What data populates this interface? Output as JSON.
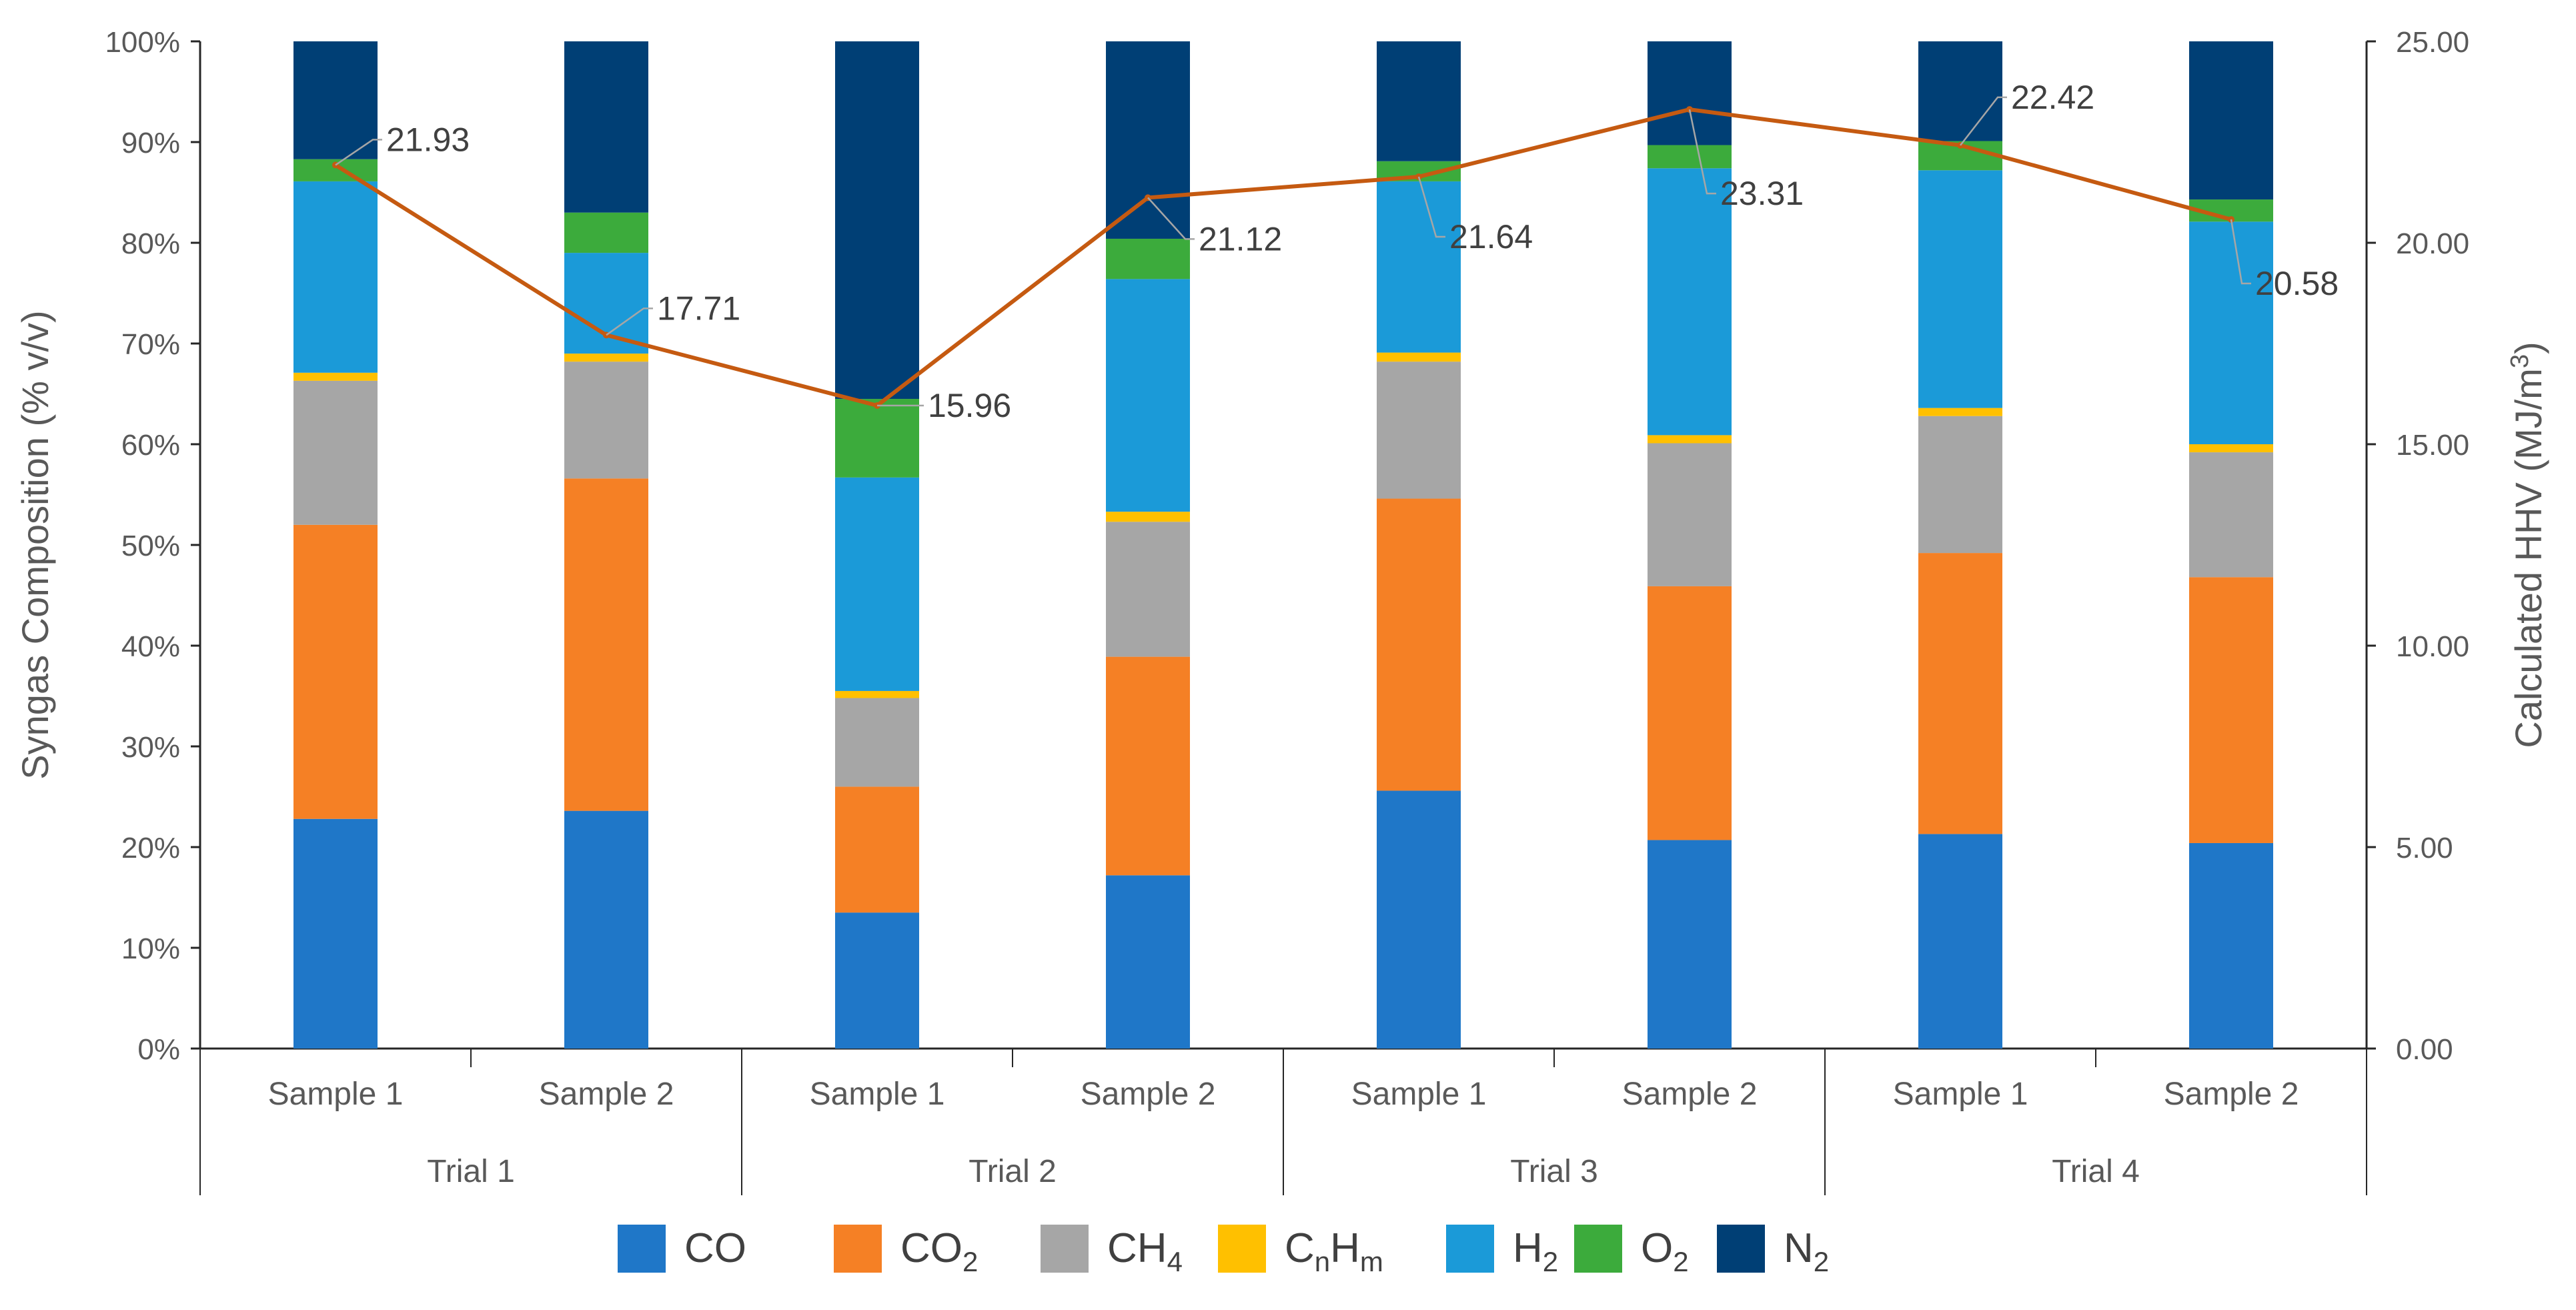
{
  "chart_data": {
    "type": "bar",
    "subtype": "stacked-100-percent-with-line",
    "groups": [
      "Trial 1",
      "Trial 2",
      "Trial 3",
      "Trial 4"
    ],
    "categories": [
      "Sample 1",
      "Sample 2",
      "Sample 1",
      "Sample 2",
      "Sample 1",
      "Sample 2",
      "Sample 1",
      "Sample 2"
    ],
    "series": [
      {
        "name": "CO",
        "color": "#1F77C8",
        "values": [
          22.8,
          23.6,
          13.5,
          17.2,
          25.6,
          20.7,
          21.3,
          20.4
        ]
      },
      {
        "name": "CO2",
        "color": "#F58025",
        "values": [
          29.2,
          33.0,
          12.5,
          21.7,
          29.0,
          25.2,
          27.9,
          26.4
        ]
      },
      {
        "name": "CH4",
        "color": "#A6A6A6",
        "values": [
          14.3,
          11.6,
          8.8,
          13.4,
          13.6,
          14.2,
          13.6,
          12.4
        ]
      },
      {
        "name": "CnHm",
        "color": "#FFC000",
        "values": [
          0.8,
          0.8,
          0.7,
          1.0,
          0.9,
          0.8,
          0.8,
          0.8
        ]
      },
      {
        "name": "H2",
        "color": "#1B9AD8",
        "values": [
          19.0,
          10.0,
          21.2,
          23.1,
          17.0,
          26.5,
          23.6,
          22.1
        ]
      },
      {
        "name": "O2",
        "color": "#3CAB3C",
        "values": [
          2.2,
          4.0,
          7.8,
          4.0,
          2.0,
          2.3,
          2.9,
          2.2
        ]
      },
      {
        "name": "N2",
        "color": "#003F75",
        "values": [
          11.7,
          17.0,
          35.5,
          19.6,
          11.9,
          10.3,
          9.9,
          15.7
        ]
      }
    ],
    "line": {
      "name": "Calculated HHV",
      "color": "#C55A11",
      "values": [
        21.93,
        17.71,
        15.96,
        21.12,
        21.64,
        23.31,
        22.42,
        20.58
      ],
      "labels": [
        "21.93",
        "17.71",
        "15.96",
        "21.12",
        "21.64",
        "23.31",
        "22.42",
        "20.58"
      ]
    },
    "ylabel": "Syngas Composition (% v/v)",
    "ylim": [
      0,
      100
    ],
    "yticks": [
      "0%",
      "10%",
      "20%",
      "30%",
      "40%",
      "50%",
      "60%",
      "70%",
      "80%",
      "90%",
      "100%"
    ],
    "y2label_main": "Calculated HHV (MJ/m",
    "y2label_sup": "3",
    "y2label_end": ")",
    "y2lim": [
      0,
      25
    ],
    "y2ticks": [
      "0.00",
      "5.00",
      "10.00",
      "15.00",
      "20.00",
      "25.00"
    ],
    "legend": [
      {
        "base": "CO",
        "sub": ""
      },
      {
        "base": "CO",
        "sub": "2"
      },
      {
        "base": "CH",
        "sub": "4"
      },
      {
        "base": "C",
        "sub": "n",
        "mid": "H",
        "sub2": "m"
      },
      {
        "base": "H",
        "sub": "2"
      },
      {
        "base": "O",
        "sub": "2"
      },
      {
        "base": "N",
        "sub": "2"
      }
    ],
    "legend_position": "bottom"
  }
}
